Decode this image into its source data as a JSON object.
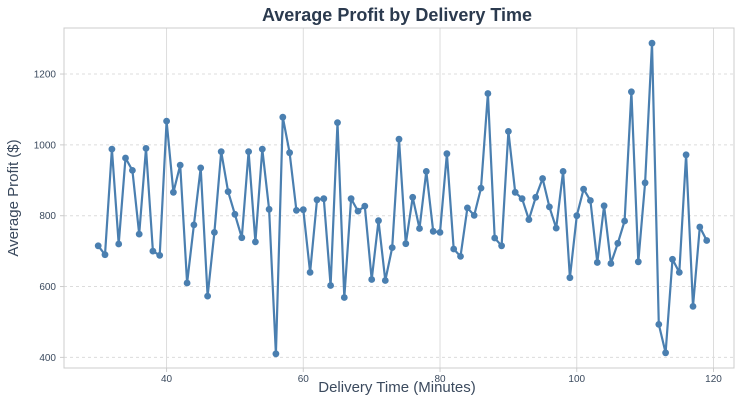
{
  "chart_data": {
    "type": "line",
    "title": "Average Profit by Delivery Time",
    "xlabel": "Delivery Time (Minutes)",
    "ylabel": "Average Profit ($)",
    "xlim": [
      25,
      123
    ],
    "ylim": [
      370,
      1330
    ],
    "xticks": [
      40,
      60,
      80,
      100,
      120
    ],
    "yticks": [
      400,
      600,
      800,
      1000,
      1200
    ],
    "grid": true,
    "colors": {
      "line": "#4a7fb0",
      "marker": "#4a7fb0"
    },
    "series": [
      {
        "x": [
          30,
          31,
          32,
          33,
          34,
          35,
          36,
          37,
          38,
          39,
          40,
          41,
          42,
          43,
          44,
          45,
          46,
          47,
          48,
          49,
          50,
          51,
          52,
          53,
          54,
          55,
          56,
          57,
          58,
          59,
          60,
          61,
          62,
          63,
          64,
          65,
          66,
          67,
          68,
          69,
          70,
          71,
          72,
          73,
          74,
          75,
          76,
          77,
          78,
          79,
          80,
          81,
          82,
          83,
          84,
          85,
          86,
          87,
          88,
          89,
          90,
          91,
          92,
          93,
          94,
          95,
          96,
          97,
          98,
          99,
          100,
          101,
          102,
          103,
          104,
          105,
          106,
          107,
          108,
          109,
          110,
          111,
          112,
          113,
          114,
          115,
          116,
          117,
          118,
          119
        ],
        "values": [
          715,
          690,
          988,
          720,
          963,
          928,
          748,
          990,
          700,
          688,
          1067,
          866,
          943,
          610,
          774,
          935,
          573,
          753,
          981,
          868,
          804,
          738,
          981,
          726,
          988,
          818,
          410,
          1078,
          978,
          815,
          817,
          640,
          845,
          848,
          603,
          1063,
          569,
          848,
          813,
          827,
          620,
          786,
          617,
          710,
          1016,
          721,
          852,
          764,
          925,
          756,
          753,
          975,
          706,
          685,
          822,
          801,
          878,
          1145,
          737,
          715,
          1038,
          866,
          848,
          789,
          852,
          905,
          825,
          765,
          925,
          625,
          800,
          875,
          843,
          668,
          828,
          665,
          722,
          785,
          1150,
          670,
          893,
          1287,
          493,
          413,
          677,
          640,
          972,
          544,
          768,
          730
        ]
      }
    ]
  }
}
